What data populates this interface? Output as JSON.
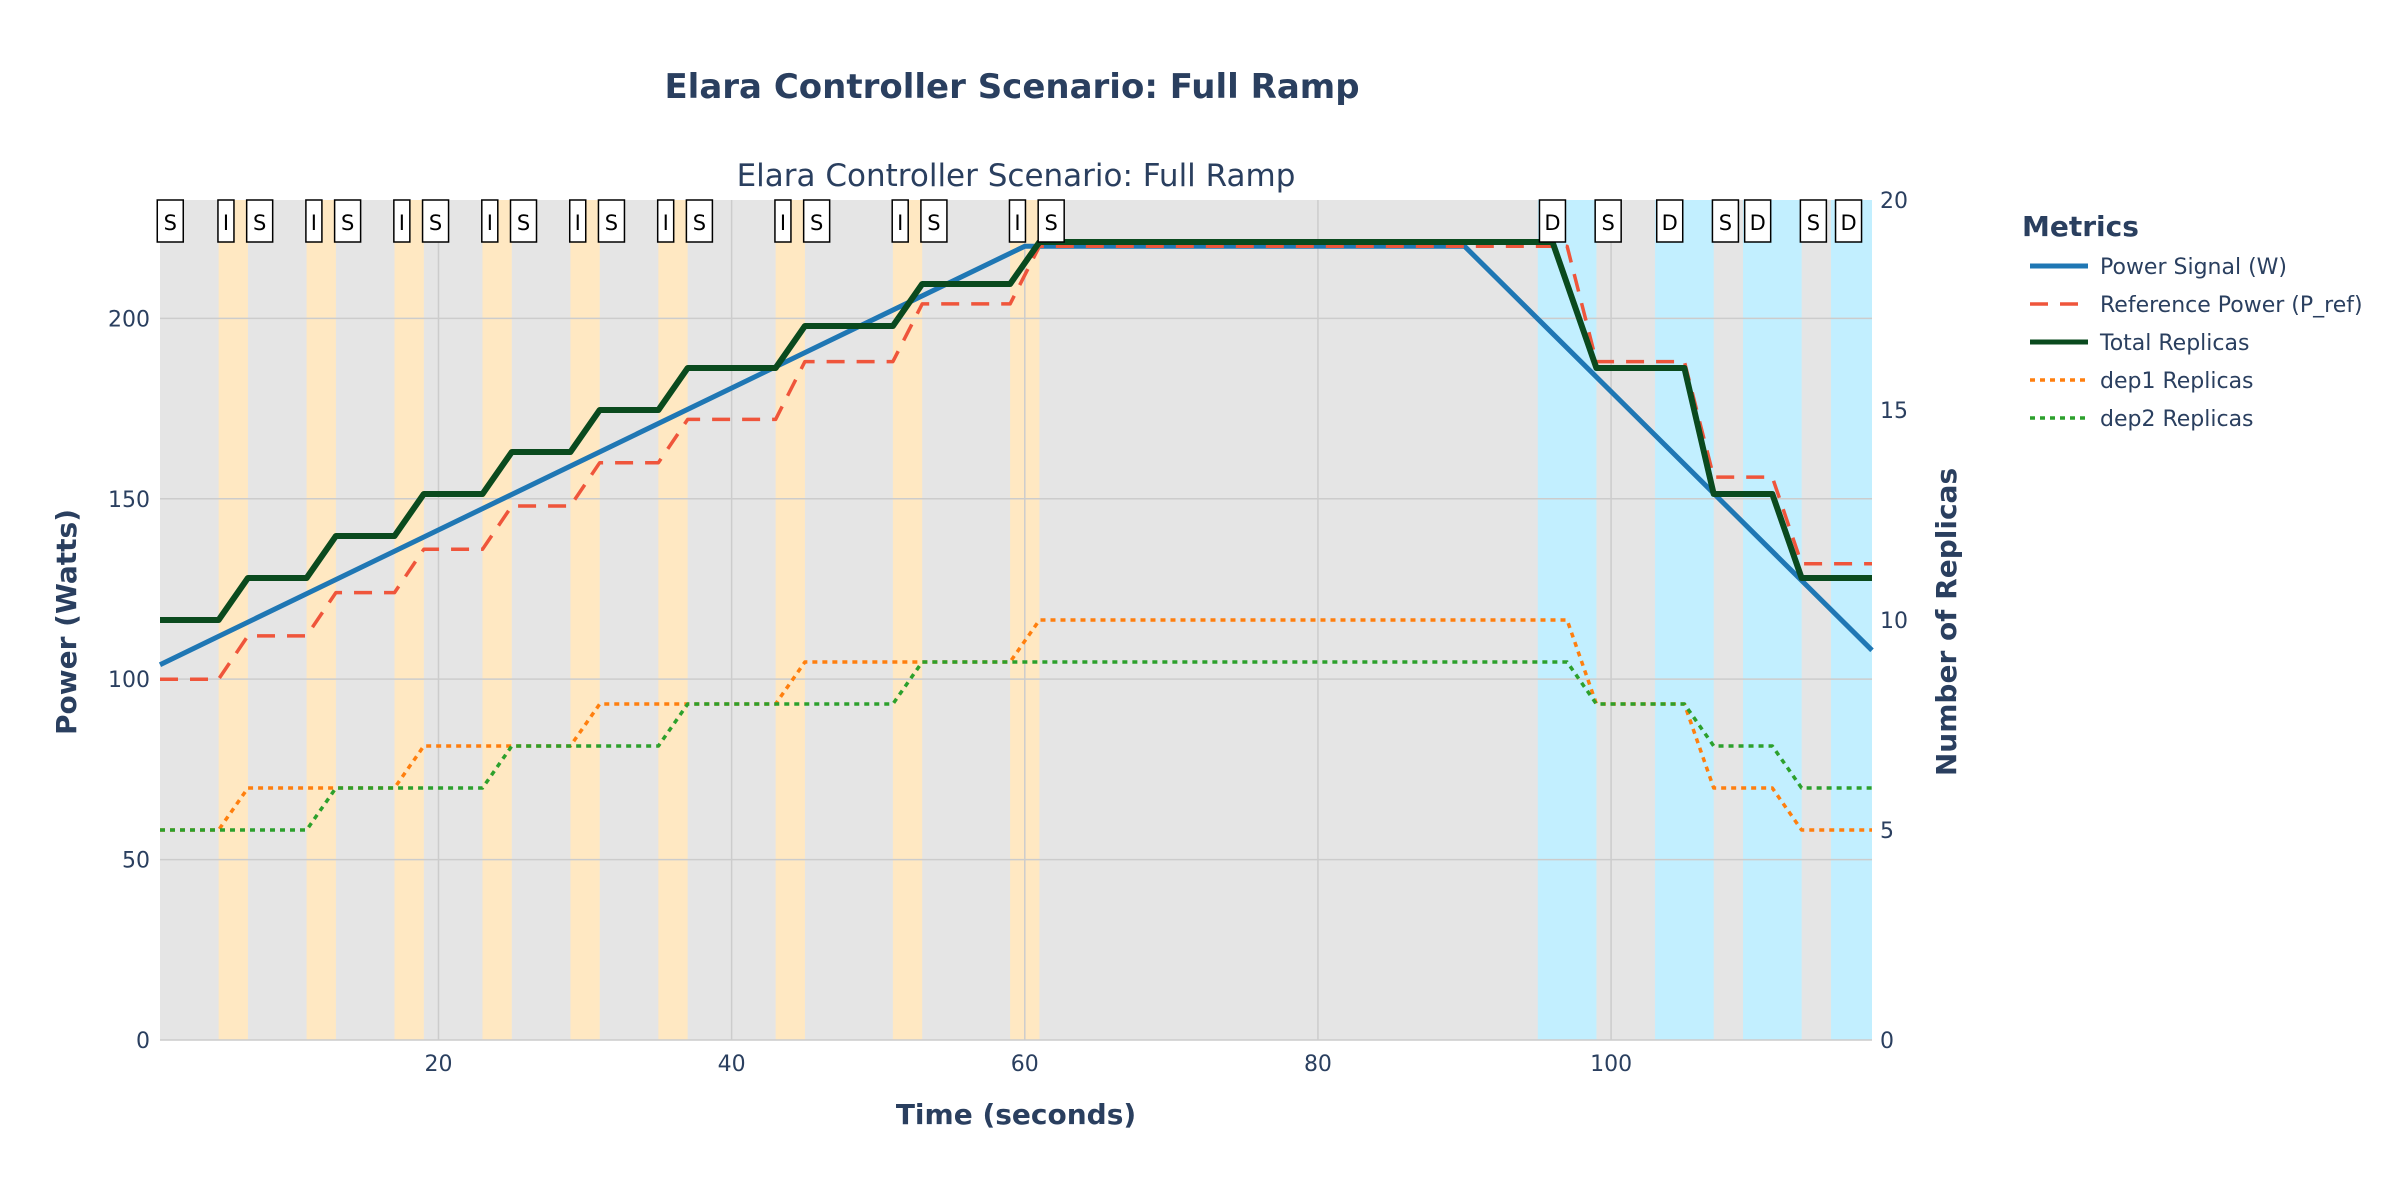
{
  "page": {
    "title": "Elara Controller Scenario: Full Ramp"
  },
  "chart_data": {
    "type": "line",
    "title": "Elara Controller Scenario: Full Ramp",
    "subtitle": "Elara Controller Scenario: Full Ramp",
    "xlabel": "Time (seconds)",
    "ylabel": "Power (Watts)",
    "y2label": "Number of Replicas",
    "xlim": [
      1,
      117.8
    ],
    "ylim": [
      0,
      232.8
    ],
    "y2lim": [
      0,
      20
    ],
    "xticks": [
      20,
      40,
      60,
      80,
      100
    ],
    "yticks": [
      0,
      50,
      100,
      150,
      200
    ],
    "y2ticks": [
      0,
      5,
      10,
      15,
      20
    ],
    "grid": true,
    "legend": {
      "title": "Metrics",
      "position": "right"
    },
    "colors": {
      "plot_bg": "#e5e5e5",
      "grid": "#cccccc",
      "scale_up_band": "#ffe8c2",
      "scale_down_band": "#c2efff",
      "power_signal": "#1f77b4",
      "reference_power": "#ef553b",
      "total_replicas": "#0a4a1e",
      "dep1_replicas": "#ff7f0e",
      "dep2_replicas": "#2ca02c"
    },
    "bands": [
      {
        "type": "increase",
        "x0": 5,
        "x1": 7
      },
      {
        "type": "increase",
        "x0": 11,
        "x1": 13
      },
      {
        "type": "increase",
        "x0": 17,
        "x1": 19
      },
      {
        "type": "increase",
        "x0": 23,
        "x1": 25
      },
      {
        "type": "increase",
        "x0": 29,
        "x1": 31
      },
      {
        "type": "increase",
        "x0": 35,
        "x1": 37
      },
      {
        "type": "increase",
        "x0": 43,
        "x1": 45
      },
      {
        "type": "increase",
        "x0": 51,
        "x1": 53
      },
      {
        "type": "increase",
        "x0": 59,
        "x1": 61
      },
      {
        "type": "decrease",
        "x0": 95,
        "x1": 99
      },
      {
        "type": "decrease",
        "x0": 103,
        "x1": 107
      },
      {
        "type": "decrease",
        "x0": 109,
        "x1": 113
      },
      {
        "type": "decrease",
        "x0": 115,
        "x1": 117.8
      }
    ],
    "events": [
      {
        "label": "S",
        "x": 1.7
      },
      {
        "label": "I",
        "x": 5.5
      },
      {
        "label": "S",
        "x": 7.8
      },
      {
        "label": "I",
        "x": 11.5
      },
      {
        "label": "S",
        "x": 13.8
      },
      {
        "label": "I",
        "x": 17.5
      },
      {
        "label": "S",
        "x": 19.8
      },
      {
        "label": "I",
        "x": 23.5
      },
      {
        "label": "S",
        "x": 25.8
      },
      {
        "label": "I",
        "x": 29.5
      },
      {
        "label": "S",
        "x": 31.8
      },
      {
        "label": "I",
        "x": 35.5
      },
      {
        "label": "S",
        "x": 37.8
      },
      {
        "label": "I",
        "x": 43.5
      },
      {
        "label": "S",
        "x": 45.8
      },
      {
        "label": "I",
        "x": 51.5
      },
      {
        "label": "S",
        "x": 53.8
      },
      {
        "label": "I",
        "x": 59.5
      },
      {
        "label": "S",
        "x": 61.8
      },
      {
        "label": "D",
        "x": 96
      },
      {
        "label": "S",
        "x": 99.8
      },
      {
        "label": "D",
        "x": 104
      },
      {
        "label": "S",
        "x": 107.8
      },
      {
        "label": "D",
        "x": 110
      },
      {
        "label": "S",
        "x": 113.8
      },
      {
        "label": "D",
        "x": 116.2
      }
    ],
    "series": [
      {
        "name": "Power Signal (W)",
        "key": "power_signal",
        "axis": "y",
        "dash": "solid",
        "width": 5,
        "x": [
          1,
          60,
          90,
          117.8
        ],
        "y": [
          104,
          220,
          220,
          108
        ]
      },
      {
        "name": "Reference Power (P_ref)",
        "key": "reference_power",
        "axis": "y",
        "dash": "dash",
        "width": 3.5,
        "x": [
          1,
          5,
          7,
          11,
          13,
          17,
          19,
          23,
          25,
          29,
          31,
          35,
          37,
          43,
          45,
          51,
          53,
          59,
          61,
          62,
          97,
          99,
          105,
          107,
          111,
          113,
          117.8
        ],
        "y": [
          100,
          100,
          112,
          112,
          124,
          124,
          136,
          136,
          148,
          148,
          160,
          160,
          172,
          172,
          188,
          188,
          204,
          204,
          220,
          220,
          220,
          188,
          188,
          156,
          156,
          132,
          132
        ]
      },
      {
        "name": "Total Replicas",
        "key": "total_replicas",
        "axis": "y2",
        "dash": "solid",
        "width": 6,
        "x": [
          1,
          5,
          7,
          11,
          13,
          17,
          19,
          23,
          25,
          29,
          31,
          35,
          37,
          43,
          45,
          51,
          53,
          59,
          61,
          96,
          99,
          105,
          107,
          111,
          113,
          117.8
        ],
        "y": [
          10,
          10,
          11,
          11,
          12,
          12,
          13,
          13,
          14,
          14,
          15,
          15,
          16,
          16,
          17,
          17,
          18,
          18,
          19,
          19,
          16,
          16,
          13,
          13,
          11,
          11
        ]
      },
      {
        "name": "dep1 Replicas",
        "key": "dep1_replicas",
        "axis": "y2",
        "dash": "dot",
        "width": 3.5,
        "x": [
          1,
          5,
          7,
          17,
          19,
          29,
          31,
          43,
          45,
          59,
          61,
          97,
          99,
          105,
          107,
          111,
          113,
          117.8
        ],
        "y": [
          5,
          5,
          6,
          6,
          7,
          7,
          8,
          8,
          9,
          9,
          10,
          10,
          8,
          8,
          6,
          6,
          5,
          5
        ]
      },
      {
        "name": "dep2 Replicas",
        "key": "dep2_replicas",
        "axis": "y2",
        "dash": "dot",
        "width": 3.5,
        "x": [
          1,
          11,
          13,
          23,
          25,
          35,
          37,
          51,
          53,
          97,
          99,
          105,
          107,
          111,
          113,
          117.8
        ],
        "y": [
          5,
          5,
          6,
          6,
          7,
          7,
          8,
          8,
          9,
          9,
          8,
          8,
          7,
          7,
          6,
          6
        ]
      }
    ]
  }
}
